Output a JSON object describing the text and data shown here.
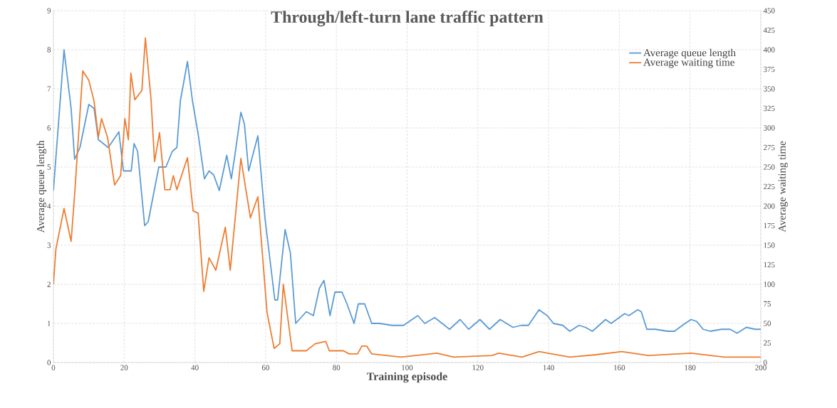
{
  "chart_data": {
    "type": "line",
    "title": "Through/left-turn lane traffic pattern",
    "xlabel": "Training episode",
    "ylabel": "Average queue length",
    "y2label": "Average waiting time",
    "xlim": [
      0,
      200
    ],
    "xticks": [
      0,
      20,
      40,
      60,
      80,
      100,
      120,
      140,
      160,
      180,
      200
    ],
    "ylim": [
      0,
      9
    ],
    "yticks": [
      0,
      1,
      2,
      3,
      4,
      5,
      6,
      7,
      8,
      9
    ],
    "y2lim": [
      0,
      450
    ],
    "y2ticks": [
      0,
      25,
      50,
      75,
      100,
      125,
      150,
      175,
      200,
      225,
      250,
      275,
      300,
      325,
      350,
      375,
      400,
      425,
      450
    ],
    "grid": true,
    "legend": "top right",
    "line_style": "solid",
    "marker": "none",
    "series": [
      {
        "name": "Average queue length",
        "color": "#5b9bd5",
        "x": [
          0,
          3,
          5,
          6,
          7.5,
          10,
          11.5,
          12.7,
          15.5,
          18.5,
          19.8,
          22,
          22.8,
          23.8,
          25.8,
          26.8,
          28.5,
          29.8,
          31.8,
          33.6,
          34.9,
          35.9,
          37.9,
          39.3,
          41,
          42.7,
          44,
          45.3,
          46.9,
          49,
          50.3,
          51.3,
          53,
          54,
          55.2,
          57.8,
          59.8,
          62.6,
          63.4,
          65.5,
          67,
          68.5,
          71.5,
          73.5,
          75.2,
          76.5,
          78.2,
          79.6,
          81.6,
          83,
          85,
          86.2,
          88,
          90,
          92.2,
          95.7,
          99,
          103,
          105,
          107.8,
          112,
          115,
          117.4,
          120.6,
          123.3,
          126.3,
          129.9,
          132.3,
          134.3,
          137.3,
          139.6,
          141.4,
          144,
          146,
          148.6,
          150.4,
          152.4,
          156.1,
          157.7,
          161.5,
          162.7,
          165.2,
          166.2,
          167.8,
          170.2,
          173.6,
          175.6,
          178.6,
          180.3,
          181.9,
          183.7,
          185.7,
          188.9,
          191.3,
          193.3,
          195.9,
          198.4,
          200
        ],
        "values": [
          4.4,
          8.0,
          6.5,
          5.2,
          5.5,
          6.6,
          6.5,
          5.7,
          5.5,
          5.9,
          4.9,
          4.9,
          5.6,
          5.4,
          3.5,
          3.6,
          4.4,
          5.0,
          5.0,
          5.4,
          5.5,
          6.7,
          7.7,
          6.7,
          5.8,
          4.7,
          4.9,
          4.8,
          4.4,
          5.3,
          4.7,
          5.3,
          6.4,
          6.1,
          4.9,
          5.8,
          3.7,
          1.6,
          1.6,
          3.4,
          2.8,
          1.0,
          1.3,
          1.2,
          1.9,
          2.1,
          1.2,
          1.8,
          1.8,
          1.5,
          1.0,
          1.5,
          1.5,
          1.0,
          1.0,
          0.95,
          0.95,
          1.2,
          1.0,
          1.15,
          0.85,
          1.1,
          0.85,
          1.1,
          0.85,
          1.1,
          0.9,
          0.95,
          0.95,
          1.35,
          1.2,
          1.0,
          0.95,
          0.8,
          0.95,
          0.9,
          0.8,
          1.1,
          1.0,
          1.25,
          1.2,
          1.35,
          1.3,
          0.85,
          0.85,
          0.8,
          0.8,
          1.0,
          1.1,
          1.05,
          0.85,
          0.8,
          0.85,
          0.85,
          0.75,
          0.9,
          0.85,
          0.85
        ]
      },
      {
        "name": "Average waiting time",
        "color": "#ed7d31",
        "axis": "y2",
        "x": [
          0,
          0.7,
          3,
          5,
          6,
          8.3,
          10,
          11.5,
          12.7,
          13.6,
          15.3,
          17.3,
          19,
          20.2,
          21.2,
          21.9,
          23,
          25,
          26,
          27.6,
          28.6,
          30,
          31.5,
          33,
          33.9,
          34.9,
          37.9,
          39.5,
          40.9,
          42.5,
          44,
          45.9,
          48.6,
          50,
          53,
          55.7,
          57.8,
          60.4,
          62.4,
          64,
          65,
          67.5,
          71.5,
          74,
          77,
          78,
          82,
          83.6,
          86,
          87.2,
          88.6,
          90,
          98.3,
          108.4,
          113.2,
          124,
          125.9,
          132.5,
          137.3,
          146,
          153.5,
          160.7,
          168.2,
          180.3,
          189.7,
          200
        ],
        "values": [
          100,
          145,
          197,
          155,
          215,
          373,
          361,
          334,
          288,
          312,
          288,
          227,
          239,
          312,
          285,
          370,
          336,
          348,
          415,
          336,
          257,
          294,
          221,
          221,
          239,
          221,
          262,
          194,
          191,
          91,
          134,
          118,
          173,
          118,
          261,
          185,
          212,
          64,
          18,
          24,
          100,
          15,
          15,
          24,
          27,
          15,
          15,
          11,
          11,
          21,
          21,
          11,
          7,
          12,
          7,
          9,
          12,
          7,
          14,
          7,
          10,
          14,
          9,
          12,
          7,
          7
        ]
      }
    ]
  }
}
